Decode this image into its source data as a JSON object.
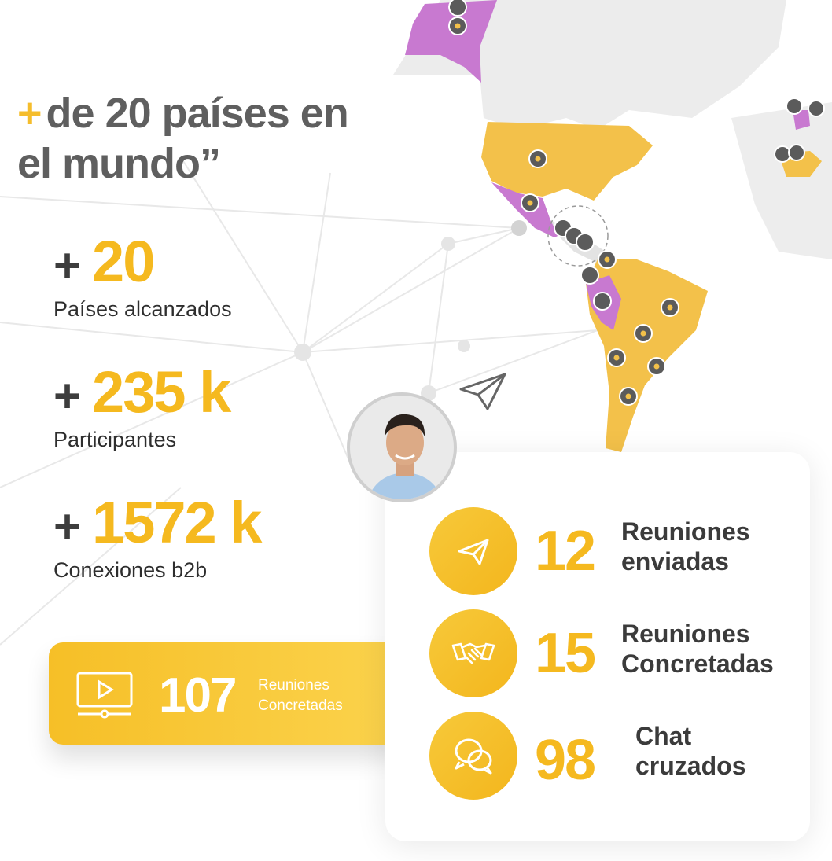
{
  "headline": {
    "plus": "+",
    "line1": "de 20 países en",
    "line2": "el mundo”"
  },
  "stats": [
    {
      "plus": "+",
      "value": "20",
      "label": "Países alcanzados"
    },
    {
      "plus": "+",
      "value": "235 k",
      "label": "Participantes"
    },
    {
      "plus": "+",
      "value": "1572 k",
      "label": "Conexiones b2b"
    }
  ],
  "video_card": {
    "value": "107",
    "label_line1": "Reuniones",
    "label_line2": "Concretadas",
    "icon": "video-play-icon"
  },
  "metrics": [
    {
      "icon": "paper-plane-icon",
      "value": "12",
      "label_line1": "Reuniones",
      "label_line2": "enviadas"
    },
    {
      "icon": "handshake-icon",
      "value": "15",
      "label_line1": "Reuniones",
      "label_line2": "Concretadas"
    },
    {
      "icon": "chat-bubbles-icon",
      "value": "98",
      "label_line1": "Chat",
      "label_line2": "cruzados"
    }
  ],
  "colors": {
    "accent": "#f5b91f",
    "purple": "#c879d0",
    "text_dark": "#2e2e2e",
    "text_gray": "#5f5f5f"
  }
}
